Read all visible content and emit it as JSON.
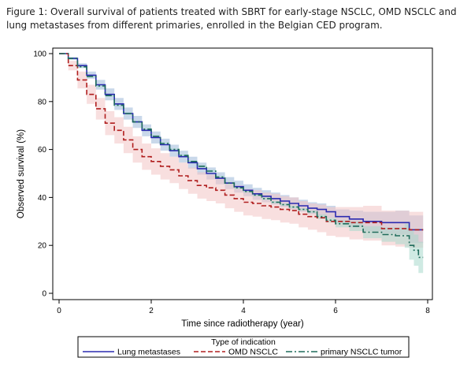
{
  "caption": "Figure 1: Overall survival of patients treated with SBRT for early-stage NSCLC, OMD NSCLC and lung metastases from different primaries, enrolled in the Belgian CED program.",
  "chart_data": {
    "type": "line",
    "xlabel": "Time since radiotherapy (year)",
    "ylabel": "Observed survival (%)",
    "xlim": [
      0,
      8
    ],
    "ylim": [
      0,
      100
    ],
    "xticks": [
      0,
      2,
      4,
      6,
      8
    ],
    "yticks": [
      0,
      20,
      40,
      60,
      80,
      100
    ],
    "grid": false,
    "legend": {
      "title": "Type of indication",
      "position": "bottom"
    },
    "series": [
      {
        "name": "Lung metastases",
        "color": "#2b2bb0",
        "band_color": "#9db8d8",
        "dash": "solid",
        "x": [
          0,
          0.2,
          0.4,
          0.6,
          0.8,
          1.0,
          1.2,
          1.4,
          1.6,
          1.8,
          2.0,
          2.2,
          2.4,
          2.6,
          2.8,
          3.0,
          3.2,
          3.4,
          3.6,
          3.8,
          4.0,
          4.2,
          4.4,
          4.6,
          4.8,
          5.0,
          5.2,
          5.4,
          5.6,
          5.8,
          6.0,
          6.3,
          6.6,
          7.0,
          7.3,
          7.6,
          7.9
        ],
        "y": [
          100,
          98,
          95,
          91,
          87,
          83,
          79,
          75,
          71.5,
          68,
          65,
          62,
          59.5,
          57,
          54.5,
          52,
          50,
          48,
          46,
          44.5,
          43,
          41.5,
          40.5,
          39.5,
          38.5,
          37.5,
          36.5,
          35.5,
          35,
          34,
          32,
          31,
          30,
          29.5,
          29.5,
          26.5,
          26.5
        ],
        "lower": [
          100,
          97.5,
          94,
          89.5,
          85,
          80.5,
          76.5,
          72.5,
          69,
          65.5,
          62.5,
          59.5,
          57,
          54.5,
          52,
          49.5,
          47.5,
          45.5,
          43.5,
          42,
          40.5,
          39,
          38,
          37,
          36,
          35,
          34,
          33,
          32.5,
          31.5,
          29,
          27.5,
          26,
          25,
          24.5,
          21,
          20.5
        ],
        "upper": [
          100,
          98.5,
          96,
          92.5,
          89,
          85.5,
          81.5,
          77.5,
          74,
          70.5,
          67.5,
          64.5,
          62,
          59.5,
          57,
          54.5,
          52.5,
          50.5,
          48.5,
          47,
          45.5,
          44,
          43,
          42,
          41,
          40,
          39,
          38,
          37.5,
          36.5,
          35,
          34.5,
          34,
          34,
          34.5,
          32.5,
          33
        ]
      },
      {
        "name": "OMD NSCLC",
        "color": "#b01e1e",
        "band_color": "#f3c5c5",
        "dash": "dashed",
        "x": [
          0,
          0.2,
          0.4,
          0.6,
          0.8,
          1.0,
          1.2,
          1.4,
          1.6,
          1.8,
          2.0,
          2.2,
          2.4,
          2.6,
          2.8,
          3.0,
          3.2,
          3.4,
          3.6,
          3.8,
          4.0,
          4.2,
          4.4,
          4.6,
          4.8,
          5.0,
          5.2,
          5.4,
          5.6,
          5.8,
          6.0,
          6.3,
          6.6,
          7.0,
          7.3,
          7.6,
          7.9
        ],
        "y": [
          100,
          95,
          89,
          83,
          77,
          71,
          68,
          64,
          60,
          57,
          55,
          53,
          51.5,
          49,
          47,
          45,
          44,
          43,
          41,
          39.5,
          38,
          37.5,
          36.5,
          36,
          35,
          34.5,
          33,
          32,
          31.5,
          30,
          30,
          29.5,
          29.5,
          27,
          27,
          26.5,
          26.5
        ],
        "lower": [
          100,
          93,
          85.5,
          79,
          72.5,
          66,
          62.5,
          58.5,
          54.5,
          51.5,
          49.5,
          47.5,
          46,
          43.5,
          41.5,
          39.5,
          38.5,
          37.5,
          35.5,
          34,
          32.5,
          32,
          31,
          30.5,
          29.5,
          29,
          27.5,
          26.5,
          25.5,
          24,
          23.5,
          22.5,
          22,
          20,
          19.5,
          19,
          19
        ],
        "upper": [
          100,
          97,
          92.5,
          87,
          81.5,
          76,
          73.5,
          69.5,
          65.5,
          62.5,
          60.5,
          58.5,
          57,
          54.5,
          52.5,
          50.5,
          49.5,
          48.5,
          46.5,
          45,
          43.5,
          43,
          42,
          41.5,
          40.5,
          40,
          38.5,
          37.5,
          37,
          36,
          36,
          36,
          36.5,
          34.5,
          34.5,
          34,
          34
        ]
      },
      {
        "name": "primary NSCLC tumor",
        "color": "#1f6b5b",
        "band_color": "#a8d8cc",
        "dash": "dashdot",
        "x": [
          0,
          0.2,
          0.4,
          0.6,
          0.8,
          1.0,
          1.2,
          1.4,
          1.6,
          1.8,
          2.0,
          2.2,
          2.4,
          2.6,
          2.8,
          3.0,
          3.2,
          3.4,
          3.6,
          3.8,
          4.0,
          4.2,
          4.4,
          4.6,
          4.8,
          5.0,
          5.2,
          5.4,
          5.6,
          5.8,
          6.0,
          6.3,
          6.6,
          7.0,
          7.3,
          7.5,
          7.6,
          7.7,
          7.8,
          7.9
        ],
        "y": [
          100,
          98,
          94.5,
          90.5,
          86.5,
          82.5,
          78.5,
          75,
          71.5,
          68.5,
          65.5,
          62.5,
          60,
          57.5,
          55,
          53,
          51,
          48.5,
          46,
          44,
          42.5,
          41,
          39.5,
          38,
          37,
          36,
          35,
          34,
          32,
          30.5,
          29,
          28,
          25.5,
          24.5,
          24,
          24,
          20,
          18,
          15,
          15
        ],
        "lower": [
          100,
          97.5,
          94,
          90,
          86,
          82,
          78,
          74.5,
          71,
          68,
          65,
          62,
          59.5,
          57,
          54.5,
          52.5,
          50.5,
          48,
          45.5,
          43.5,
          42,
          40.5,
          39,
          37.5,
          36.5,
          35.5,
          34.5,
          33.5,
          31,
          29.5,
          27.5,
          26,
          23,
          21.5,
          20.5,
          19,
          14,
          11.5,
          8.5,
          8.5
        ],
        "upper": [
          100,
          98.5,
          95,
          91,
          87,
          83,
          79,
          75.5,
          72,
          69,
          66,
          63,
          60.5,
          58,
          55.5,
          53.5,
          51.5,
          49,
          46.5,
          44.5,
          43,
          41.5,
          40,
          38.5,
          37.5,
          36.5,
          35.5,
          34.5,
          33,
          31.5,
          30.5,
          30,
          28,
          27.5,
          27.5,
          29,
          26,
          24.5,
          21.5,
          21.5
        ]
      }
    ]
  }
}
